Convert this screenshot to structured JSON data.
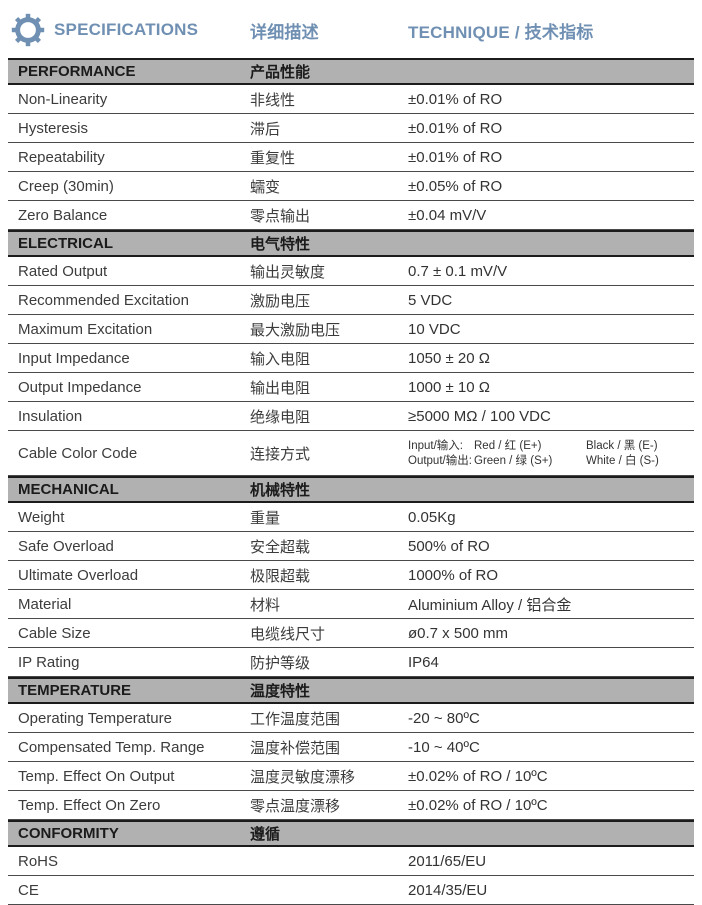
{
  "colors": {
    "accent": "#7090b3",
    "section_bg": "#b1b1b1",
    "section_text": "#1b1b1b",
    "row_text": "#3c3c3c",
    "heavy_border": "#1c1c1c",
    "row_border": "#4a4a4a"
  },
  "header": {
    "icon": "gear-icon",
    "title": "SPECIFICATIONS",
    "col2": "详细描述",
    "col3": "TECHNIQUE / 技术指标"
  },
  "sections": [
    {
      "title_en": "PERFORMANCE",
      "title_cn": "产品性能",
      "rows": [
        {
          "en": "Non-Linearity",
          "cn": "非线性",
          "value": "±0.01% of RO"
        },
        {
          "en": "Hysteresis",
          "cn": "滞后",
          "value": "±0.01% of RO"
        },
        {
          "en": "Repeatability",
          "cn": "重复性",
          "value": "±0.01% of RO"
        },
        {
          "en": "Creep (30min)",
          "cn": "蠕变",
          "value": "±0.05% of RO"
        },
        {
          "en": "Zero Balance",
          "cn": "零点输出",
          "value": "±0.04 mV/V"
        }
      ]
    },
    {
      "title_en": "ELECTRICAL",
      "title_cn": "电气特性",
      "rows": [
        {
          "en": "Rated Output",
          "cn": "输出灵敏度",
          "value": "0.7 ± 0.1 mV/V"
        },
        {
          "en": "Recommended Excitation",
          "cn": "激励电压",
          "value": "5 VDC"
        },
        {
          "en": "Maximum Excitation",
          "cn": "最大激励电压",
          "value": "10 VDC"
        },
        {
          "en": "Input Impedance",
          "cn": "输入电阻",
          "value": "1050 ± 20 Ω"
        },
        {
          "en": "Output Impedance",
          "cn": "输出电阻",
          "value": "1000 ± 10 Ω"
        },
        {
          "en": "Insulation",
          "cn": "绝缘电阻",
          "value": "≥5000 MΩ / 100 VDC"
        },
        {
          "en": "Cable Color Code",
          "cn": "连接方式",
          "value_lines": [
            {
              "label": "Input/输入:",
              "a": "Red / 红 (E+)",
              "b": "Black / 黑 (E-)"
            },
            {
              "label": "Output/输出:",
              "a": "Green / 绿 (S+)",
              "b": "White / 白 (S-)"
            }
          ]
        }
      ]
    },
    {
      "title_en": "MECHANICAL",
      "title_cn": "机械特性",
      "rows": [
        {
          "en": "Weight",
          "cn": "重量",
          "value": "0.05Kg"
        },
        {
          "en": "Safe Overload",
          "cn": "安全超载",
          "value": "500% of RO"
        },
        {
          "en": "Ultimate Overload",
          "cn": "极限超载",
          "value": "1000% of RO"
        },
        {
          "en": "Material",
          "cn": "材料",
          "value": "Aluminium Alloy / 铝合金"
        },
        {
          "en": "Cable Size",
          "cn": "电缆线尺寸",
          "value": "ø0.7 x 500 mm"
        },
        {
          "en": "IP Rating",
          "cn": "防护等级",
          "value": "IP64"
        }
      ]
    },
    {
      "title_en": "TEMPERATURE",
      "title_cn": "温度特性",
      "rows": [
        {
          "en": "Operating Temperature",
          "cn": "工作温度范围",
          "value": "-20 ~ 80ºC"
        },
        {
          "en": "Compensated Temp. Range",
          "cn": "温度补偿范围",
          "value": "-10 ~ 40ºC"
        },
        {
          "en": "Temp. Effect On Output",
          "cn": "温度灵敏度漂移",
          "value": "±0.02% of RO / 10ºC"
        },
        {
          "en": "Temp. Effect On Zero",
          "cn": "零点温度漂移",
          "value": "±0.02% of RO / 10ºC"
        }
      ]
    },
    {
      "title_en": "CONFORMITY",
      "title_cn": "遵循",
      "rows": [
        {
          "en": "RoHS",
          "cn": "",
          "value": "2011/65/EU"
        },
        {
          "en": "CE",
          "cn": "",
          "value": "2014/35/EU"
        }
      ]
    }
  ]
}
